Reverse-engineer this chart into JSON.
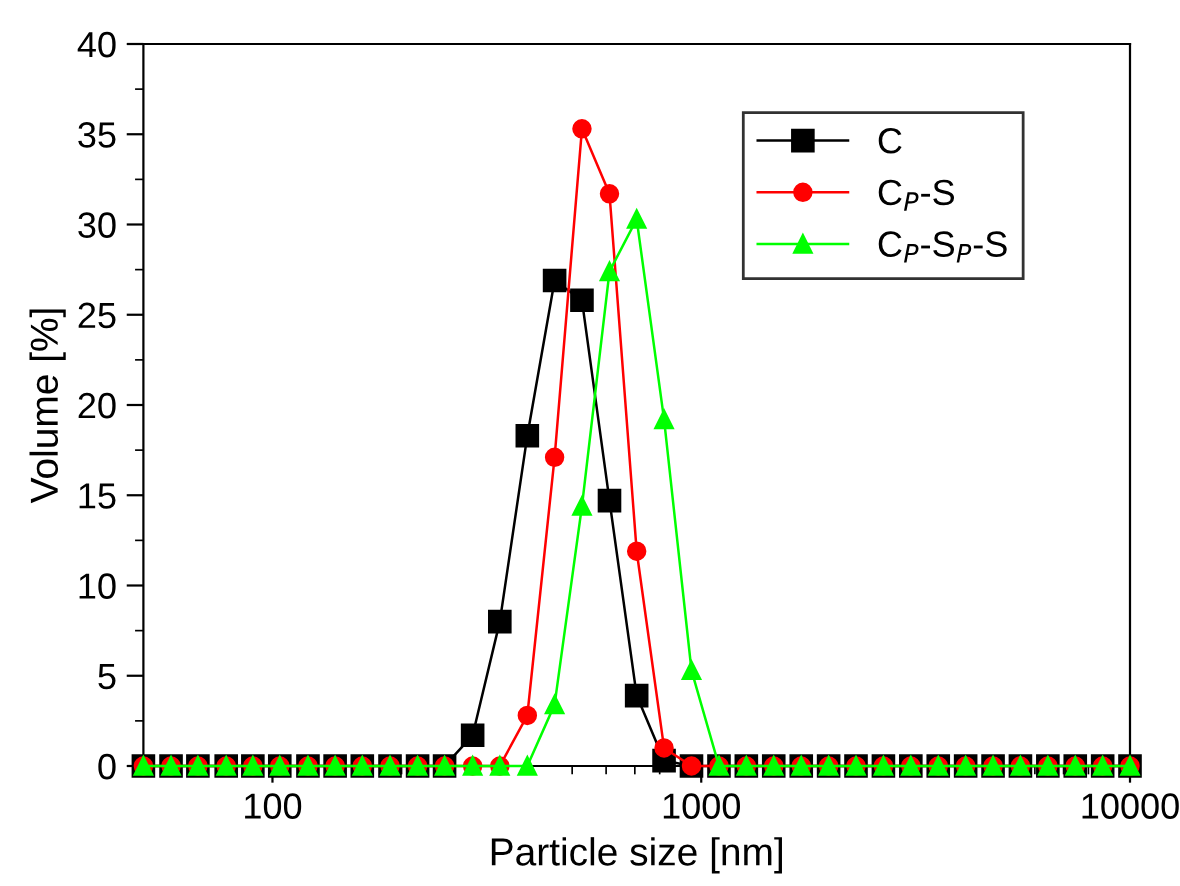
{
  "chart_data": {
    "type": "line",
    "xlabel": "Particle size [nm]",
    "ylabel": "Volume [%]",
    "x": [
      50,
      58,
      67,
      78,
      90,
      104,
      121,
      140,
      162,
      188,
      218,
      252,
      293,
      339,
      393,
      455,
      527,
      611,
      707,
      819,
      949,
      1100,
      1274,
      1476,
      1711,
      1982,
      2296,
      2660,
      3082,
      3571,
      4137,
      4793,
      5552,
      6433,
      7453,
      8635,
      10000
    ],
    "series": [
      {
        "name": "C",
        "color": "#000000",
        "marker": "square",
        "values": [
          0,
          0,
          0,
          0,
          0,
          0,
          0,
          0,
          0,
          0,
          0,
          0,
          1.7,
          8.0,
          18.3,
          26.9,
          25.8,
          14.7,
          3.9,
          0.3,
          0,
          0,
          0,
          0,
          0,
          0,
          0,
          0,
          0,
          0,
          0,
          0,
          0,
          0,
          0,
          0,
          0
        ]
      },
      {
        "name": "C$_{P}$-S",
        "color": "#ff0000",
        "marker": "circle",
        "values": [
          0,
          0,
          0,
          0,
          0,
          0,
          0,
          0,
          0,
          0,
          0,
          0,
          0,
          0,
          2.8,
          17.1,
          35.3,
          31.7,
          11.9,
          1.0,
          0,
          0,
          0,
          0,
          0,
          0,
          0,
          0,
          0,
          0,
          0,
          0,
          0,
          0,
          0,
          0,
          0
        ]
      },
      {
        "name": "C$_{P}$-S$_{P}$-S",
        "color": "#00ff00",
        "marker": "triangle",
        "values": [
          0,
          0,
          0,
          0,
          0,
          0,
          0,
          0,
          0,
          0,
          0,
          0,
          0,
          0,
          0,
          3.4,
          14.4,
          27.4,
          30.3,
          19.2,
          5.3,
          0,
          0,
          0,
          0,
          0,
          0,
          0,
          0,
          0,
          0,
          0,
          0,
          0,
          0,
          0,
          0
        ]
      }
    ],
    "log": "x",
    "xlim": [
      50,
      10000
    ],
    "xticks": [
      100,
      1000,
      10000
    ],
    "ylim": [
      0,
      40
    ],
    "yticks": [
      0,
      5,
      10,
      15,
      20,
      25,
      30,
      35,
      40
    ],
    "grid": false,
    "legend": "top right",
    "line_style": "solid"
  }
}
